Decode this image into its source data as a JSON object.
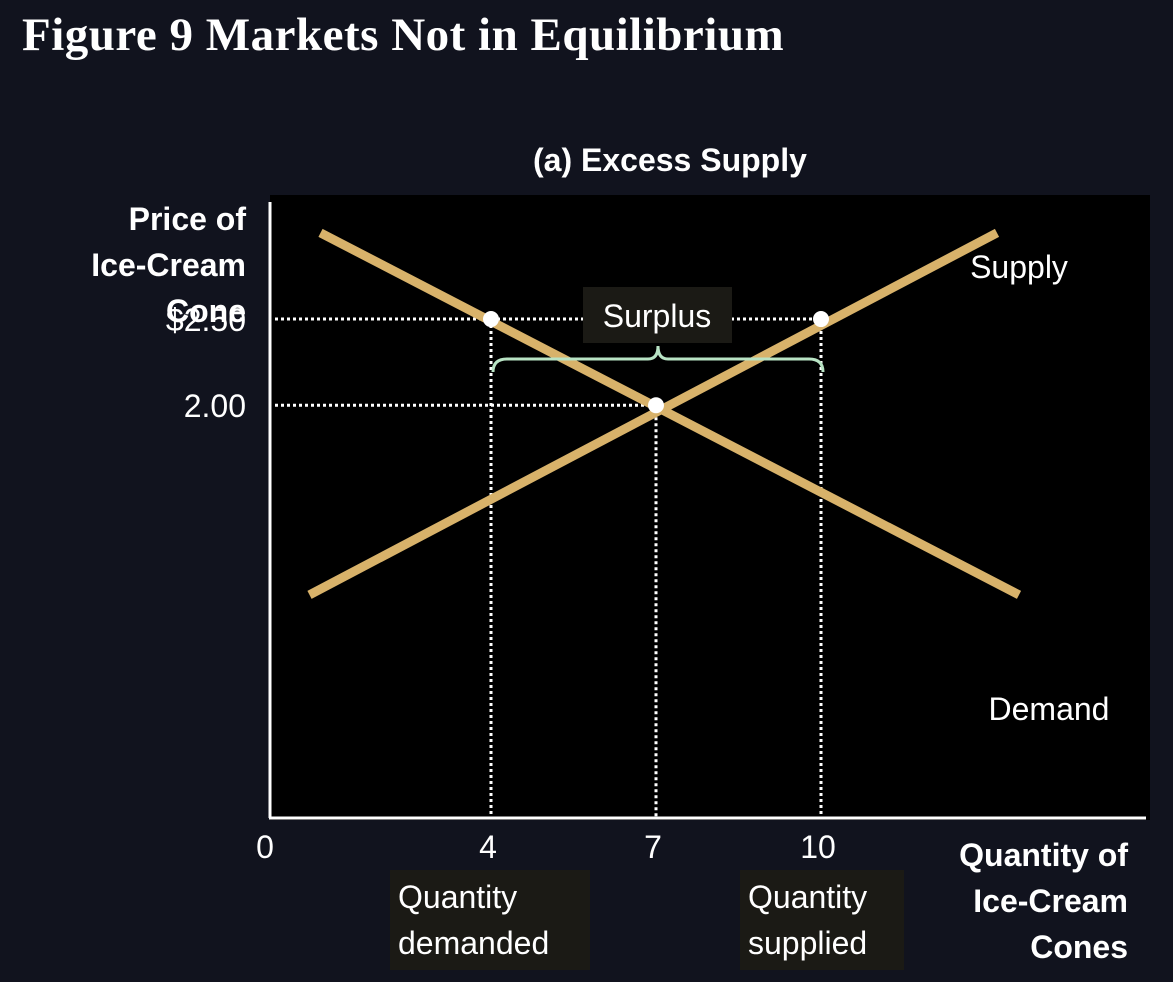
{
  "figure_title": "Figure 9 Markets Not in Equilibrium",
  "colors": {
    "background": "#11131e",
    "plot_background": "#000000",
    "curve": "#d8b26a",
    "brace": "#b8e3c4",
    "text": "#ffffff"
  },
  "chart_data": {
    "type": "line",
    "title": "(a) Excess Supply",
    "ylabel_lines": [
      "Price of",
      "Ice-Cream",
      "Cone"
    ],
    "xlabel_lines": [
      "Quantity of",
      "Ice-Cream",
      "Cones"
    ],
    "x_ticks": [
      {
        "value": 0,
        "label": "0"
      },
      {
        "value": 4,
        "label": "4"
      },
      {
        "value": 7,
        "label": "7"
      },
      {
        "value": 10,
        "label": "10"
      }
    ],
    "y_ticks": [
      {
        "value": 2.5,
        "label": "$2.50"
      },
      {
        "value": 2.0,
        "label": "2.00"
      }
    ],
    "xlim": [
      0,
      16
    ],
    "ylim": [
      -0.4,
      3.4
    ],
    "grid": false,
    "series": [
      {
        "name": "Supply",
        "points": [
          [
            0.7,
            0.9
          ],
          [
            13.2,
            3.0
          ]
        ]
      },
      {
        "name": "Demand",
        "points": [
          [
            0.9,
            3.0
          ],
          [
            13.6,
            0.9
          ]
        ]
      }
    ],
    "points": [
      {
        "x": 4,
        "y": 2.5
      },
      {
        "x": 10,
        "y": 2.5
      },
      {
        "x": 7,
        "y": 2.0
      }
    ],
    "annotations": {
      "surplus_label": "Surplus",
      "surplus_from": 4,
      "surplus_to": 10,
      "quantity_demanded": [
        "Quantity",
        "demanded"
      ],
      "quantity_supplied": [
        "Quantity",
        "supplied"
      ]
    }
  }
}
